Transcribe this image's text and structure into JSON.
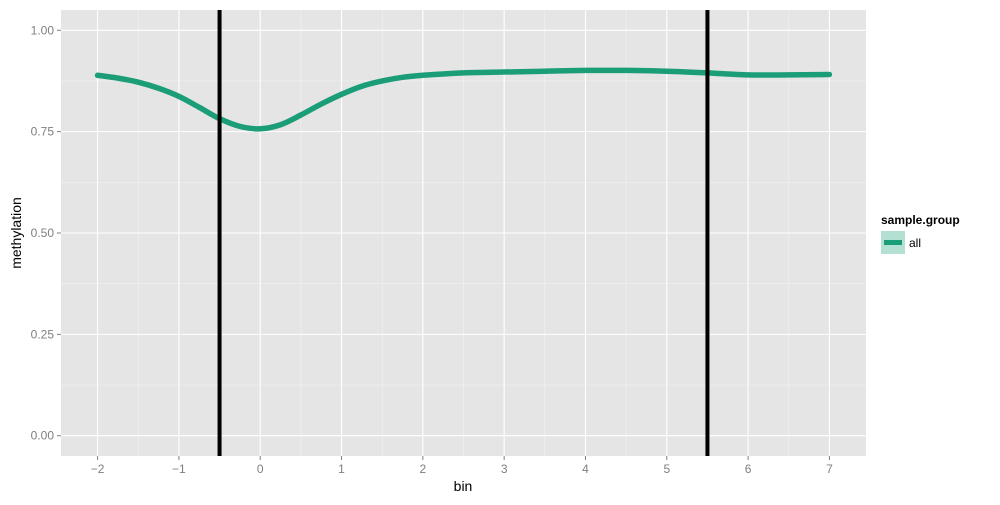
{
  "chart_data": {
    "type": "line",
    "xlabel": "bin",
    "ylabel": "methylation",
    "xlim": [
      -2.45,
      7.45
    ],
    "ylim": [
      -0.05,
      1.05
    ],
    "x_ticks": [
      -2,
      -1,
      0,
      1,
      2,
      3,
      4,
      5,
      6,
      7
    ],
    "x_tick_labels": [
      "−2",
      "−1",
      "0",
      "1",
      "2",
      "3",
      "4",
      "5",
      "6",
      "7"
    ],
    "y_ticks": [
      0.0,
      0.25,
      0.5,
      0.75,
      1.0
    ],
    "y_tick_labels": [
      "0.00",
      "0.25",
      "0.50",
      "0.75",
      "1.00"
    ],
    "grid": true,
    "panel_background": "#e5e5e5",
    "series": [
      {
        "name": "all",
        "color": "#1b9e77",
        "x": [
          -2,
          -1.75,
          -1.5,
          -1.25,
          -1,
          -0.75,
          -0.5,
          -0.25,
          0,
          0.25,
          0.5,
          0.75,
          1,
          1.25,
          1.5,
          1.75,
          2,
          2.5,
          3,
          3.5,
          4,
          4.5,
          5,
          5.5,
          6,
          6.5,
          7
        ],
        "y": [
          0.889,
          0.882,
          0.872,
          0.857,
          0.837,
          0.81,
          0.782,
          0.763,
          0.757,
          0.767,
          0.791,
          0.818,
          0.842,
          0.862,
          0.875,
          0.884,
          0.889,
          0.895,
          0.897,
          0.899,
          0.901,
          0.901,
          0.899,
          0.895,
          0.89,
          0.89,
          0.891
        ]
      }
    ],
    "vertical_lines": [
      -0.5,
      5.5
    ],
    "vertical_line_color": "#000000",
    "legend": {
      "title": "sample.group",
      "position": "right",
      "entries": [
        "all"
      ]
    }
  }
}
